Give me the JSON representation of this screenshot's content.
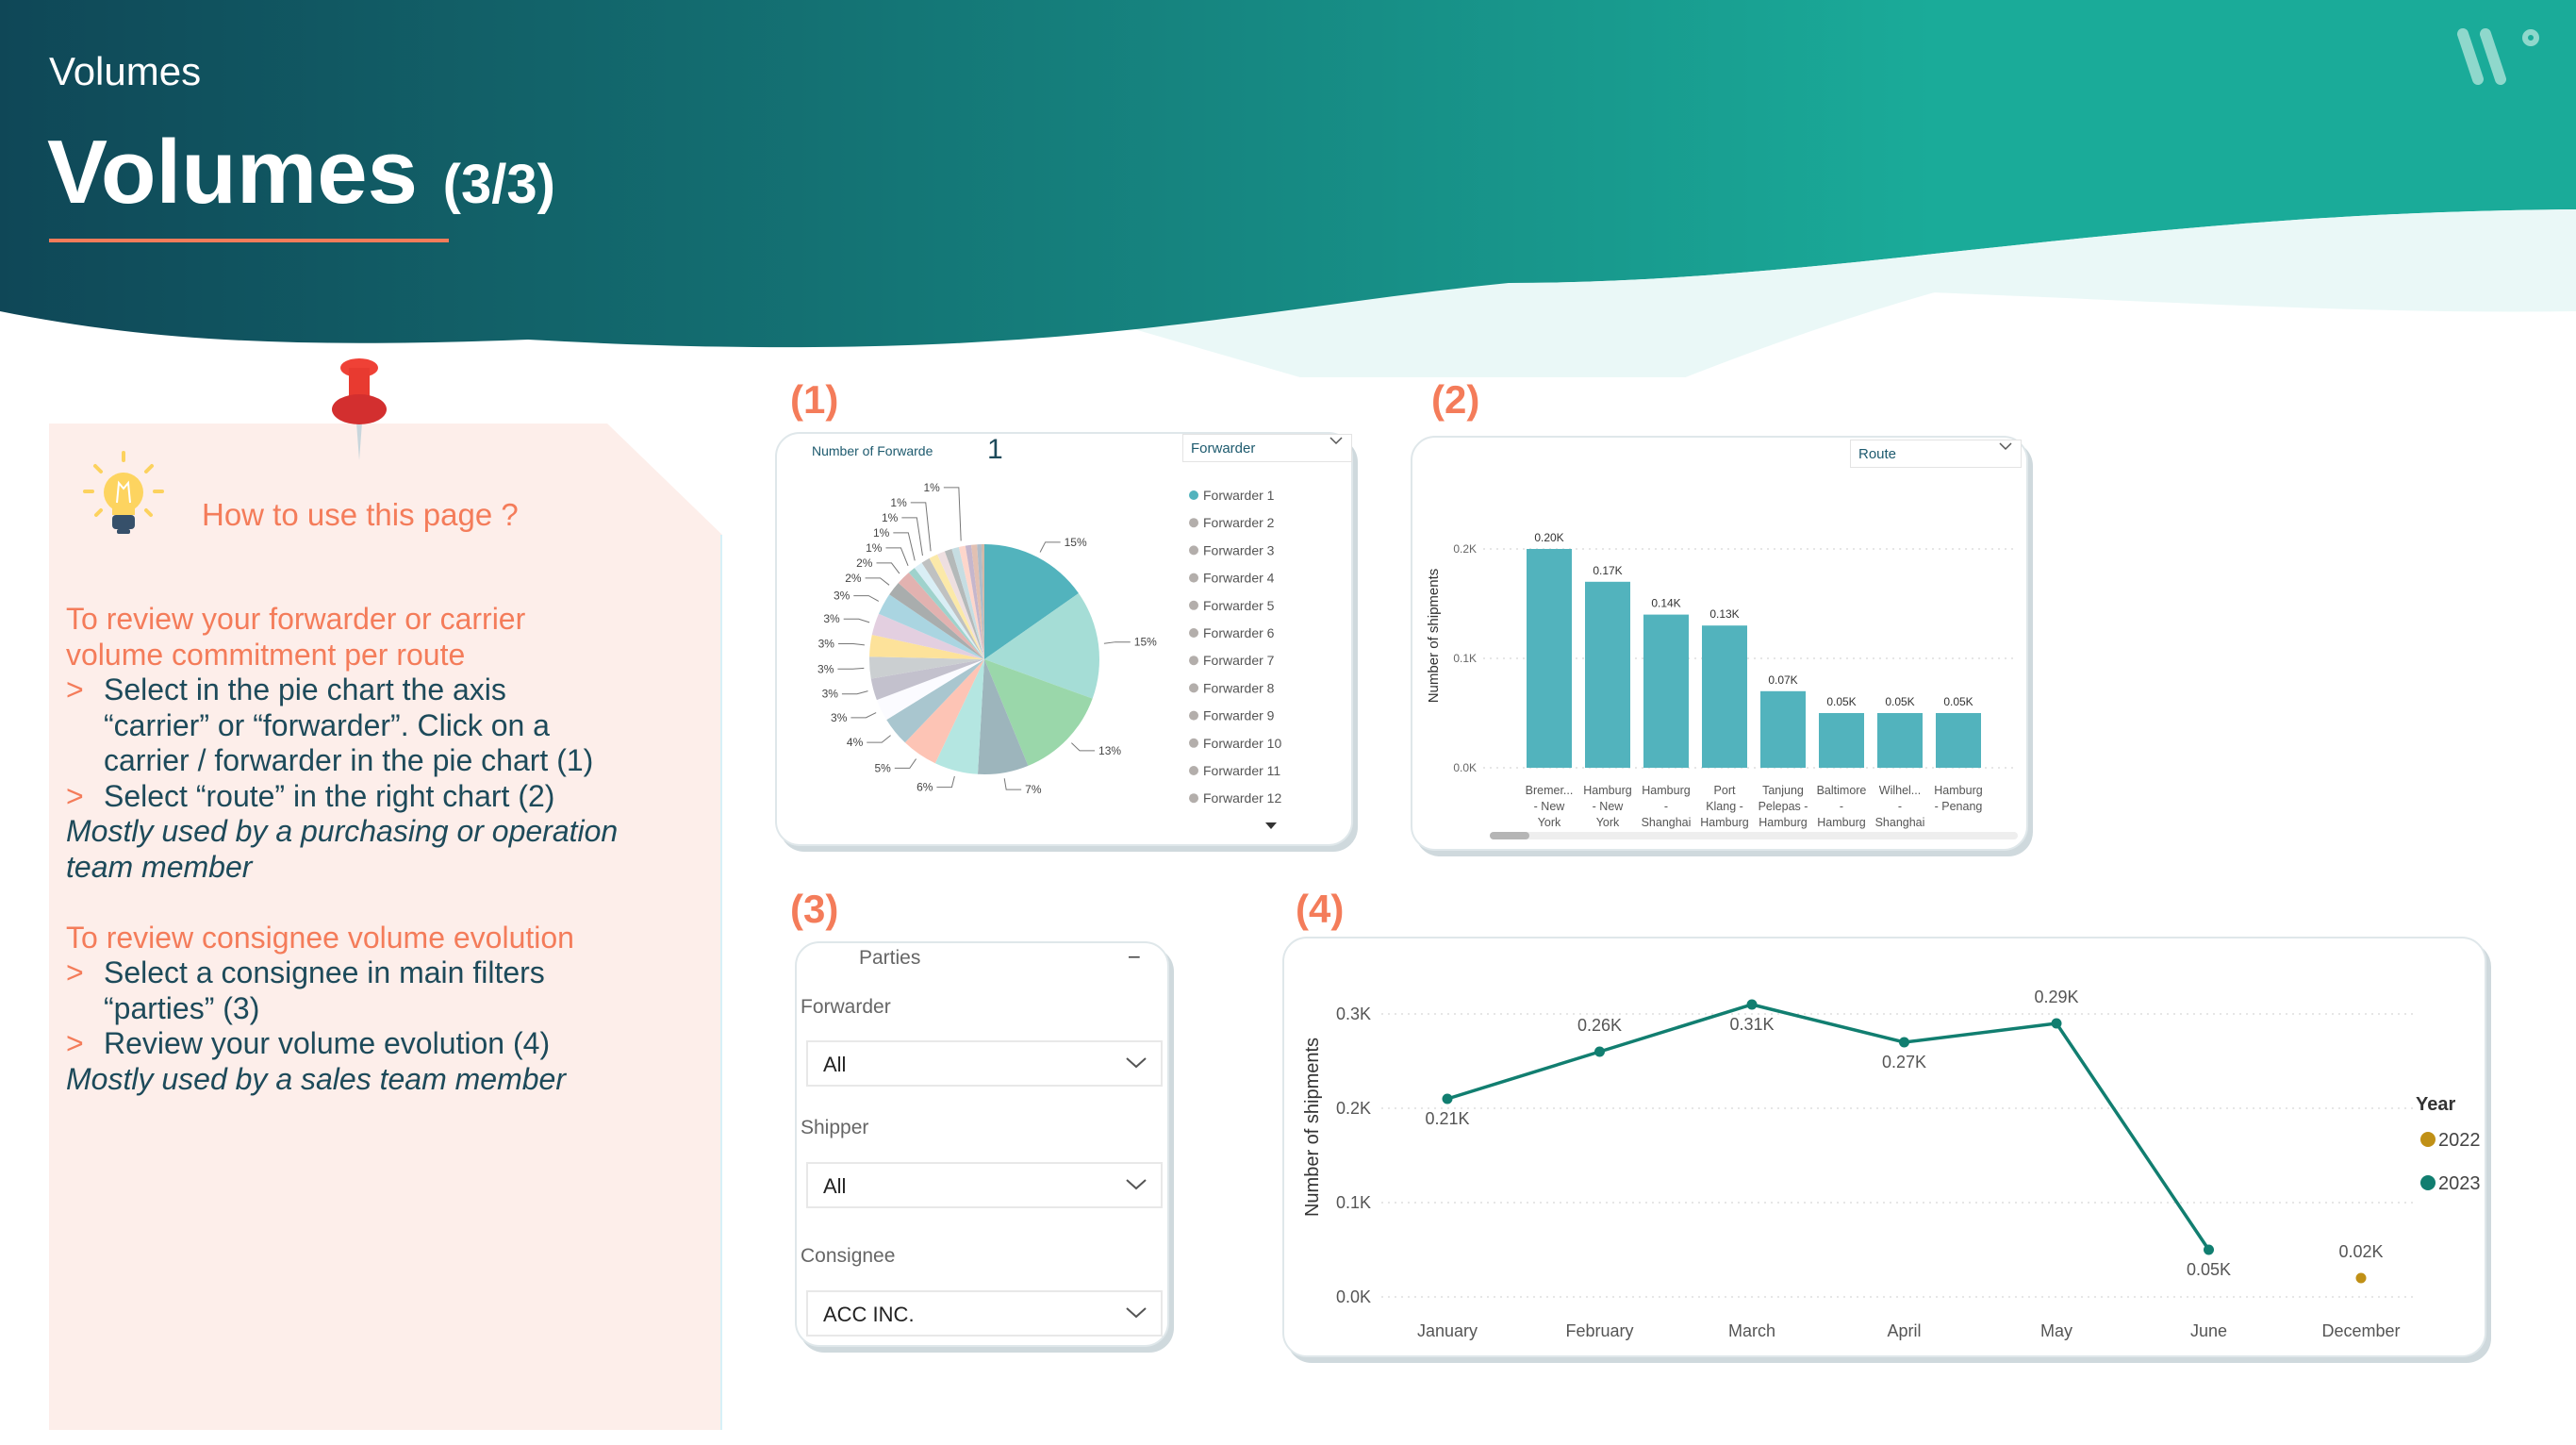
{
  "header": {
    "breadcrumb": "Volumes",
    "title": "Volumes",
    "title_suffix": "(3/3)",
    "gradient": [
      "#0f4757",
      "#1aab99"
    ],
    "logo": "brand-logo"
  },
  "guide": {
    "heading": "How to use this page ?",
    "sections": [
      {
        "title_lines": [
          "To review your forwarder or carrier",
          "volume commitment per route"
        ],
        "bullets": [
          [
            "Select in the pie chart the axis",
            "“carrier” or “forwarder”. Click on a",
            "carrier / forwarder in the pie chart (1)"
          ],
          [
            "Select “route” in the right chart (2)"
          ]
        ],
        "note_lines": [
          "Mostly used by a purchasing or operation",
          "team member"
        ]
      },
      {
        "title_lines": [
          "To review consignee volume evolution"
        ],
        "bullets": [
          [
            "Select a consignee in main filters",
            "“parties” (3)"
          ],
          [
            "Review your volume evolution (4)"
          ]
        ],
        "note_lines": [
          "Mostly used by a sales team member"
        ]
      }
    ],
    "bullet_marker": ">",
    "accent": "#f47c5a"
  },
  "labels": {
    "one": "(1)",
    "two": "(2)",
    "three": "(3)",
    "four": "(4)"
  },
  "chart_data": [
    {
      "type": "pie",
      "kpi_label": "Number of Forwarde",
      "kpi_value": "1",
      "axis_select": "Forwarder",
      "slices": [
        {
          "label": "15%",
          "value": 15,
          "color": "#52b3bd"
        },
        {
          "label": "15%",
          "value": 15,
          "color": "#a5ddd6"
        },
        {
          "label": "13%",
          "value": 13,
          "color": "#9ad7aa"
        },
        {
          "label": "7%",
          "value": 7,
          "color": "#9db5bc"
        },
        {
          "label": "6%",
          "value": 6,
          "color": "#b4e6e1"
        },
        {
          "label": "5%",
          "value": 5,
          "color": "#fdc4b5"
        },
        {
          "label": "4%",
          "value": 4,
          "color": "#a9c6cf"
        },
        {
          "label": "3%",
          "value": 3,
          "color": "#fbfbff"
        },
        {
          "label": "3%",
          "value": 3,
          "color": "#c3c1cd"
        },
        {
          "label": "3%",
          "value": 3,
          "color": "#cbcfd1"
        },
        {
          "label": "3%",
          "value": 3,
          "color": "#fde29a"
        },
        {
          "label": "3%",
          "value": 3,
          "color": "#e3cfe0"
        },
        {
          "label": "3%",
          "value": 3,
          "color": "#aad5e1"
        },
        {
          "label": "2%",
          "value": 2,
          "color": "#a9adad"
        },
        {
          "label": "2%",
          "value": 2,
          "color": "#e2b2b0"
        },
        {
          "label": "1%",
          "value": 1,
          "color": "#9fd2cc"
        },
        {
          "label": "1%",
          "value": 1.2,
          "color": "#d9eef5"
        },
        {
          "label": "1%",
          "value": 1.2,
          "color": "#bfc1c1"
        },
        {
          "label": "1%",
          "value": 1.2,
          "color": "#fbe9a9"
        },
        {
          "label": "",
          "value": 1.1,
          "color": "#eedfe0"
        },
        {
          "label": "",
          "value": 1,
          "color": "#b4b9b9"
        },
        {
          "label": "",
          "value": 1,
          "color": "#c6dde2"
        },
        {
          "label": "1%",
          "value": 0.9,
          "color": "#fdd6cb"
        },
        {
          "label": "",
          "value": 0.8,
          "color": "#c5b6cc"
        },
        {
          "label": "",
          "value": 0.8,
          "color": "#e2c0b2"
        },
        {
          "label": "",
          "value": 0.6,
          "color": "#b0bcc8"
        },
        {
          "label": "",
          "value": 0.4,
          "color": "#d2b8a8"
        }
      ],
      "legend": [
        "Forwarder 1",
        "Forwarder 2",
        "Forwarder 3",
        "Forwarder 4",
        "Forwarder 5",
        "Forwarder 6",
        "Forwarder 7",
        "Forwarder 8",
        "Forwarder 9",
        "Forwarder 10",
        "Forwarder 11",
        "Forwarder 12"
      ],
      "legend_colors": {
        "selected": "#52b3bd",
        "other": "#b3aeab"
      }
    },
    {
      "type": "bar",
      "axis_select": "Route",
      "ylabel": "Number of shipments",
      "ylim": [
        0,
        0.2
      ],
      "yticks": [
        "0.0K",
        "0.1K",
        "0.2K"
      ],
      "grid": true,
      "categories": [
        [
          "Bremer...",
          "- New",
          "York"
        ],
        [
          "Hamburg",
          "- New",
          "York"
        ],
        [
          "Hamburg",
          "-",
          "Shanghai"
        ],
        [
          "Port",
          "Klang -",
          "Hamburg"
        ],
        [
          "Tanjung",
          "Pelepas -",
          "Hamburg"
        ],
        [
          "Baltimore",
          "-",
          "Hamburg"
        ],
        [
          "Wilhel...",
          "-",
          "Shanghai"
        ],
        [
          "Hamburg",
          "- Penang",
          ""
        ]
      ],
      "values": [
        0.2,
        0.17,
        0.14,
        0.13,
        0.07,
        0.05,
        0.05,
        0.05
      ],
      "data_labels": [
        "0.20K",
        "0.17K",
        "0.14K",
        "0.13K",
        "0.07K",
        "0.05K",
        "0.05K",
        "0.05K"
      ],
      "color": "#52b3bd"
    },
    {
      "type": "line",
      "ylabel": "Number of shipments",
      "ylim": [
        0,
        0.3
      ],
      "yticks": [
        "0.0K",
        "0.1K",
        "0.2K",
        "0.3K"
      ],
      "grid": true,
      "categories": [
        "January",
        "February",
        "March",
        "April",
        "May",
        "June",
        "December"
      ],
      "legend_title": "Year",
      "legend_position": "right",
      "series": [
        {
          "name": "2022",
          "color": "#c09016",
          "values": [
            null,
            null,
            null,
            null,
            null,
            null,
            0.02
          ],
          "data_labels": [
            "",
            "",
            "",
            "",
            "",
            "",
            "0.02K"
          ]
        },
        {
          "name": "2023",
          "color": "#117e70",
          "values": [
            0.21,
            0.26,
            0.31,
            0.27,
            0.29,
            0.05,
            null
          ],
          "data_labels": [
            "0.21K",
            "0.26K",
            "0.31K",
            "0.27K",
            "0.29K",
            "0.05K",
            ""
          ]
        }
      ]
    }
  ],
  "filters": {
    "title": "Parties",
    "collapse": "–",
    "fields": [
      {
        "label": "Forwarder",
        "value": "All"
      },
      {
        "label": "Shipper",
        "value": "All"
      },
      {
        "label": "Consignee",
        "value": "ACC INC."
      }
    ]
  }
}
